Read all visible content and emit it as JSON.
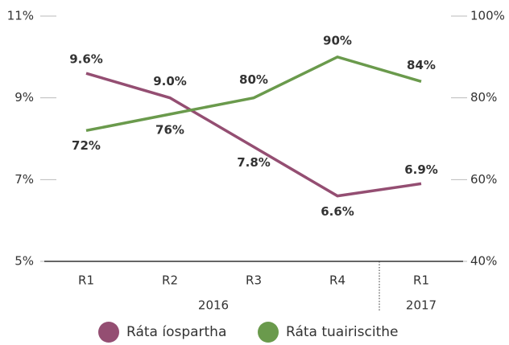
{
  "chart_data": {
    "type": "line",
    "categories": [
      "R1",
      "R2",
      "R3",
      "R4",
      "R1"
    ],
    "groups": [
      "2016",
      "2016",
      "2016",
      "2016",
      "2017"
    ],
    "series": [
      {
        "name": "Ráta íospartha",
        "color": "#944e72",
        "values": [
          9.6,
          9.0,
          7.8,
          6.6,
          6.9
        ],
        "value_labels": [
          "9.6%",
          "9.0%",
          "7.8%",
          "6.6%",
          "6.9%"
        ]
      },
      {
        "name": "Ráta tuairiscithe",
        "color": "#6a9a4c",
        "axis": "y2",
        "values": [
          72,
          76,
          80,
          90,
          84
        ],
        "value_labels": [
          "72%",
          "76%",
          "80%",
          "90%",
          "84%"
        ]
      }
    ],
    "ylim": [
      5,
      11
    ],
    "yticks": [
      {
        "value": 5,
        "label": "5%"
      },
      {
        "value": 7,
        "label": "7%"
      },
      {
        "value": 9,
        "label": "9%"
      },
      {
        "value": 11,
        "label": "11%"
      }
    ],
    "y2lim": [
      40,
      100
    ],
    "y2ticks": [
      {
        "value": 40,
        "label": "40%"
      },
      {
        "value": 60,
        "label": "60%"
      },
      {
        "value": 80,
        "label": "80%"
      },
      {
        "value": 100,
        "label": "100%"
      }
    ]
  }
}
